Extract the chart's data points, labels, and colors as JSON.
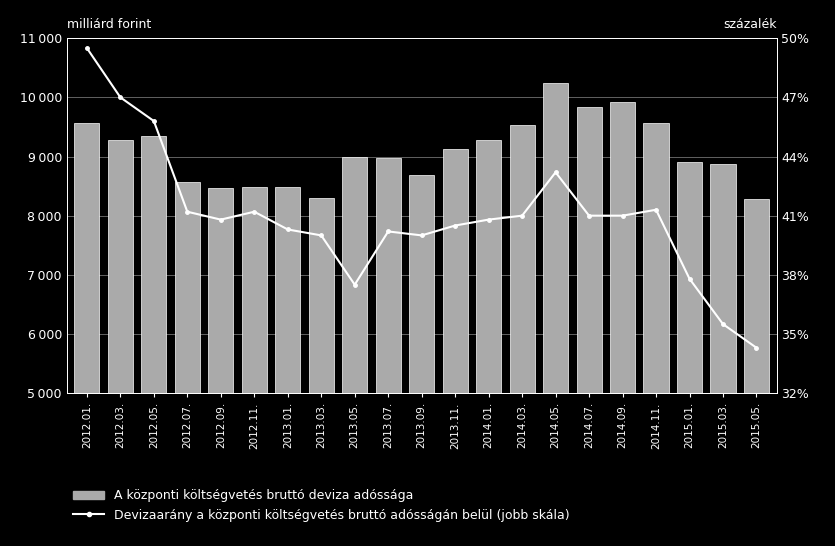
{
  "categories": [
    "2012.01.",
    "2012.03.",
    "2012.05.",
    "2012.07.",
    "2012.09.",
    "2012.11.",
    "2013.01.",
    "2013.03.",
    "2013.05.",
    "2013.07.",
    "2013.09.",
    "2013.11.",
    "2014.01.",
    "2014.03.",
    "2014.05.",
    "2014.07.",
    "2014.09.",
    "2014.11.",
    "2015.01.",
    "2015.03.",
    "2015.05."
  ],
  "bar_values": [
    9570,
    9280,
    9350,
    8570,
    8470,
    8480,
    8480,
    8300,
    9000,
    8980,
    8680,
    9120,
    9280,
    9540,
    10250,
    9840,
    9930,
    9560,
    8900,
    8870,
    8280
  ],
  "line_values": [
    49.5,
    47.0,
    45.8,
    41.2,
    40.8,
    41.2,
    40.3,
    40.0,
    37.5,
    40.2,
    40.0,
    40.5,
    40.8,
    41.0,
    43.2,
    41.0,
    41.0,
    41.3,
    37.8,
    35.5,
    34.3
  ],
  "bar_color": "#aaaaaa",
  "bar_edgecolor": "#ffffff",
  "line_color": "#ffffff",
  "background_color": "#000000",
  "text_color": "#ffffff",
  "ylim_left": [
    5000,
    11000
  ],
  "ylim_right": [
    32,
    50
  ],
  "yticks_left": [
    5000,
    6000,
    7000,
    8000,
    9000,
    10000,
    11000
  ],
  "yticks_right": [
    32,
    35,
    38,
    41,
    44,
    47,
    50
  ],
  "ytick_labels_right": [
    "32%",
    "35%",
    "38%",
    "41%",
    "44%",
    "47%",
    "50%"
  ],
  "ylabel_left": "milliárd forint",
  "ylabel_right": "százalék",
  "legend_bar": "A központi költségvetés bruttó deviza adóssága",
  "legend_line": "Devizaarány a központi költségvetés bruttó adósságán belül (jobb skála)",
  "axis_fontsize": 9,
  "tick_fontsize": 9,
  "legend_fontsize": 9,
  "figsize": [
    8.35,
    5.46
  ],
  "dpi": 100
}
